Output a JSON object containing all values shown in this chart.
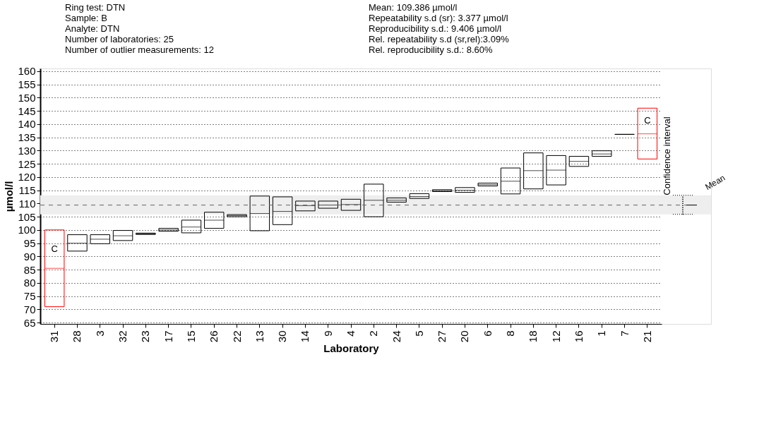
{
  "chart_data": {
    "type": "box",
    "title": "Ring test: DTN",
    "annotations": [
      "Sample: B",
      "Analyte: DTN",
      "Number of laboratories: 25",
      "Number of outlier measurements: 12",
      "Mean: 109.386 µmol/l",
      "Repeatability s.d (sr): 3.377 µmol/l",
      "Reproducibility s.d.: 9.406 µmol/l",
      "Rel. repeatability s.d (sr,rel):3.09%",
      "Rel. reproducibility s.d.: 8.60%",
      "C",
      "C"
    ],
    "xlabel": "Laboratory",
    "ylabel": "µmol/l",
    "categories": [
      "31",
      "28",
      "3",
      "32",
      "23",
      "17",
      "15",
      "26",
      "22",
      "13",
      "30",
      "14",
      "9",
      "4",
      "2",
      "24",
      "5",
      "27",
      "20",
      "6",
      "8",
      "18",
      "12",
      "16",
      "1",
      "7",
      "21"
    ],
    "boxes": [
      {
        "low": 71,
        "q1": 71,
        "median": 85.5,
        "q3": 100,
        "high": 100
      },
      {
        "low": 92,
        "q1": 92,
        "median": 95,
        "q3": 98.2,
        "high": 98.2
      },
      {
        "low": 94.8,
        "q1": 94.8,
        "median": 96.5,
        "q3": 98.2,
        "high": 98.2
      },
      {
        "low": 96,
        "q1": 96,
        "median": 97.8,
        "q3": 99.8,
        "high": 99.8
      },
      {
        "low": 98.3,
        "q1": 98.3,
        "median": 98.5,
        "q3": 98.8,
        "high": 98.8
      },
      {
        "low": 99.5,
        "q1": 99.5,
        "median": 100,
        "q3": 100.6,
        "high": 100.6
      },
      {
        "low": 98.9,
        "q1": 98.9,
        "median": 101.1,
        "q3": 103.7,
        "high": 103.7
      },
      {
        "low": 100.6,
        "q1": 100.6,
        "median": 103.7,
        "q3": 106.7,
        "high": 106.7
      },
      {
        "low": 105,
        "q1": 105,
        "median": 105.4,
        "q3": 105.8,
        "high": 105.8
      },
      {
        "low": 99.7,
        "q1": 99.7,
        "median": 106.2,
        "q3": 112.8,
        "high": 112.8
      },
      {
        "low": 102,
        "q1": 102,
        "median": 107,
        "q3": 112.5,
        "high": 112.5
      },
      {
        "low": 107.2,
        "q1": 107.2,
        "median": 109.2,
        "q3": 110.9,
        "high": 110.9
      },
      {
        "low": 108.2,
        "q1": 108.2,
        "median": 109.4,
        "q3": 110.9,
        "high": 110.9
      },
      {
        "low": 107.4,
        "q1": 107.4,
        "median": 109.6,
        "q3": 111.6,
        "high": 111.6
      },
      {
        "low": 105,
        "q1": 105,
        "median": 111.2,
        "q3": 117.3,
        "high": 117.3
      },
      {
        "low": 110.5,
        "q1": 110.5,
        "median": 111.2,
        "q3": 112.1,
        "high": 112.1
      },
      {
        "low": 111.9,
        "q1": 111.9,
        "median": 112.6,
        "q3": 113.7,
        "high": 113.7
      },
      {
        "low": 114.5,
        "q1": 114.5,
        "median": 114.8,
        "q3": 115.2,
        "high": 115.2
      },
      {
        "low": 114.2,
        "q1": 114.2,
        "median": 115,
        "q3": 116,
        "high": 116
      },
      {
        "low": 116.6,
        "q1": 116.6,
        "median": 117.1,
        "q3": 117.7,
        "high": 117.7
      },
      {
        "low": 113.6,
        "q1": 113.6,
        "median": 118.4,
        "q3": 123.4,
        "high": 123.4
      },
      {
        "low": 115.5,
        "q1": 115.5,
        "median": 122.4,
        "q3": 129.1,
        "high": 129.1
      },
      {
        "low": 117,
        "q1": 117,
        "median": 122.6,
        "q3": 128.1,
        "high": 128.1
      },
      {
        "low": 124,
        "q1": 124,
        "median": 125.9,
        "q3": 127.8,
        "high": 127.8
      },
      {
        "low": 127.8,
        "q1": 127.8,
        "median": 128.7,
        "q3": 129.9,
        "high": 129.9
      },
      {
        "low": 136.1,
        "q1": 136.1,
        "median": 136.1,
        "q3": 136.1,
        "high": 136.1
      },
      {
        "low": 126.8,
        "q1": 126.8,
        "median": 136.3,
        "q3": 146,
        "high": 146
      }
    ],
    "colors": [
      "#ff0000",
      "#000000",
      "#000000",
      "#000000",
      "#000000",
      "#000000",
      "#000000",
      "#000000",
      "#000000",
      "#000000",
      "#000000",
      "#000000",
      "#000000",
      "#000000",
      "#000000",
      "#000000",
      "#000000",
      "#000000",
      "#000000",
      "#000000",
      "#000000",
      "#000000",
      "#000000",
      "#000000",
      "#000000",
      "#000000",
      "#ff0000"
    ],
    "ylim": [
      64.5,
      161
    ],
    "yticks": [
      65,
      70,
      75,
      80,
      85,
      90,
      95,
      100,
      105,
      110,
      115,
      120,
      125,
      130,
      135,
      140,
      145,
      150,
      155,
      160
    ],
    "grid": "y",
    "ref_lines": [
      {
        "axis": "y",
        "value": 109.386,
        "label": "Mean",
        "line_style": "dashed",
        "color": "#666666"
      }
    ],
    "bands": [
      {
        "axis": "y",
        "from": 105.9,
        "to": 113.1,
        "label": "Confidence interval"
      }
    ]
  }
}
